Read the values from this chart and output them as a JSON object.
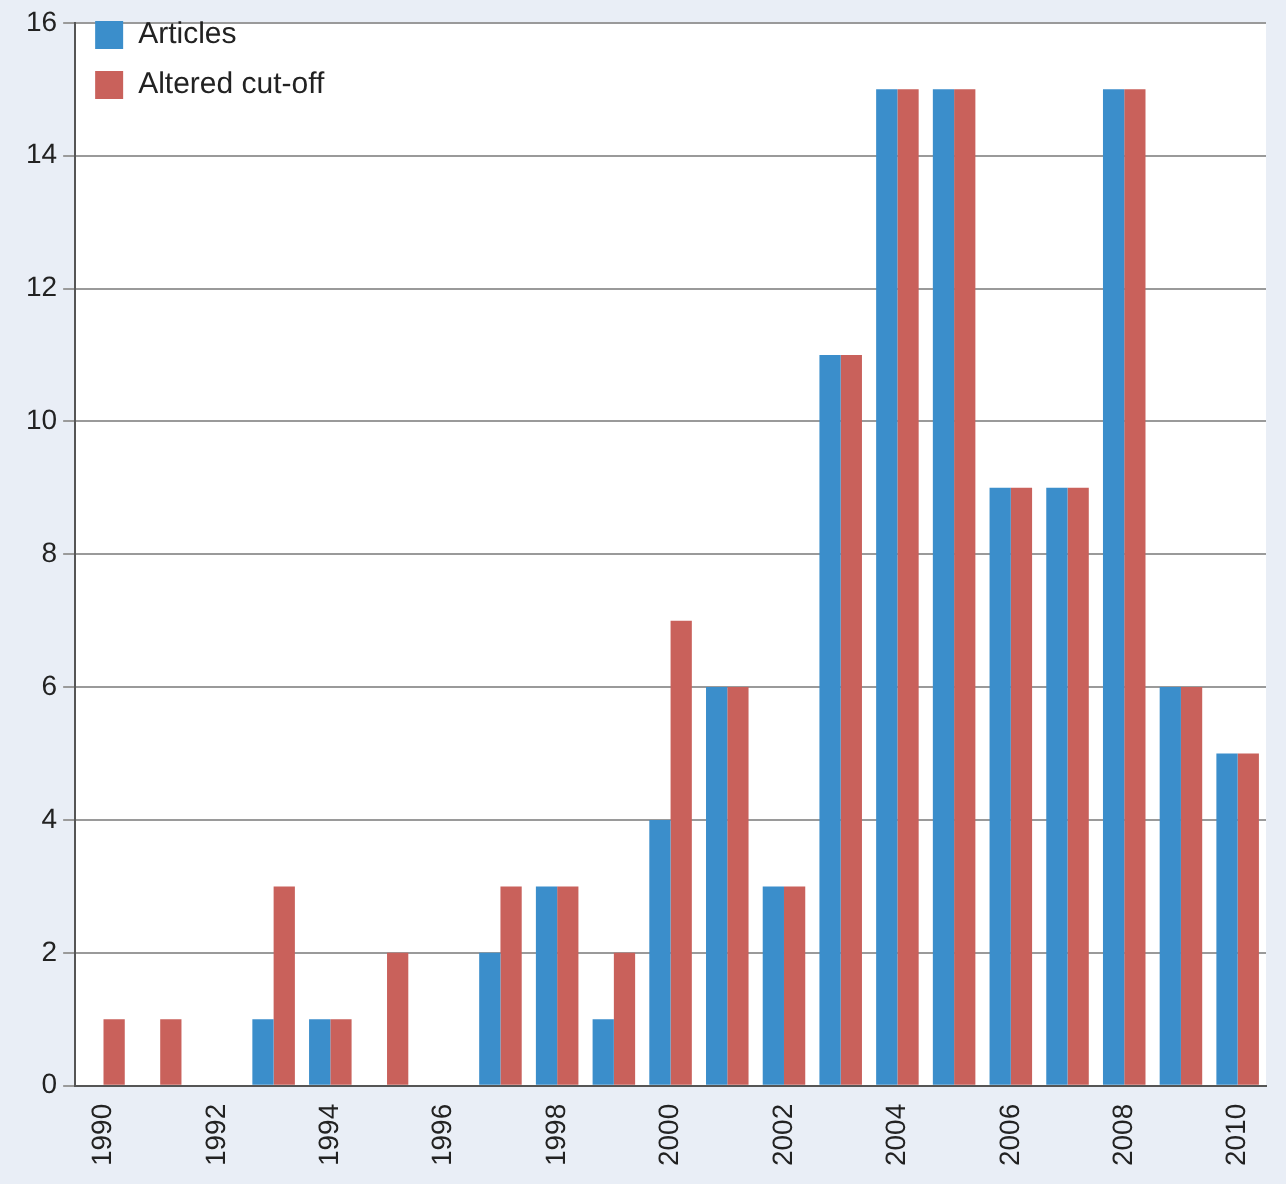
{
  "chart_data": {
    "type": "bar",
    "categories": [
      "1990",
      null,
      "1992",
      null,
      "1994",
      null,
      "1996",
      null,
      "1998",
      null,
      "2000",
      null,
      "2002",
      null,
      "2004",
      null,
      "2006",
      null,
      "2008",
      null,
      "2010"
    ],
    "series": [
      {
        "name": "Articles",
        "color": "#3b8ecb",
        "values": [
          0,
          0,
          0,
          1,
          1,
          0,
          0,
          2,
          3,
          1,
          4,
          6,
          3,
          11,
          15,
          15,
          9,
          9,
          15,
          6,
          5
        ]
      },
      {
        "name": "Altered cut-off",
        "color": "#c9615b",
        "values": [
          1,
          1,
          0,
          3,
          1,
          2,
          0,
          3,
          3,
          2,
          7,
          6,
          3,
          11,
          15,
          15,
          9,
          9,
          15,
          6,
          5
        ]
      }
    ],
    "ylim": [
      0,
      16
    ],
    "yticks": [
      0,
      2,
      4,
      6,
      8,
      10,
      12,
      14,
      16
    ],
    "grid": "y",
    "legend": "top left"
  }
}
